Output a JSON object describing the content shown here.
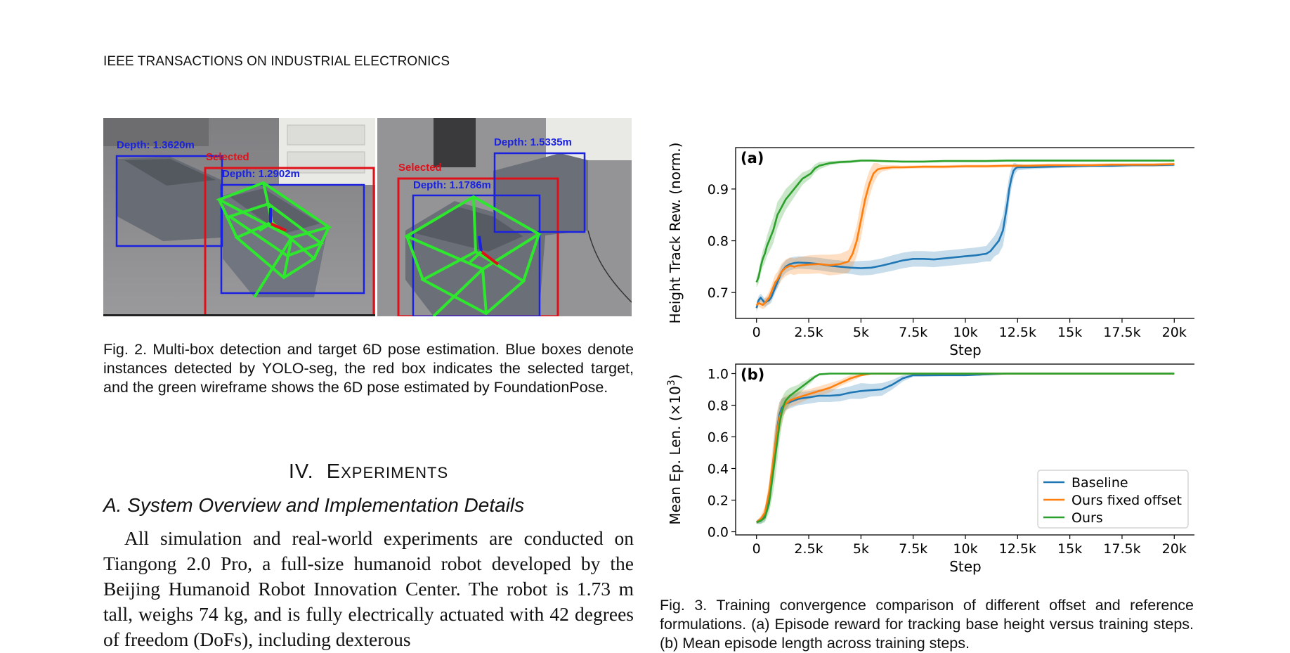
{
  "header": {
    "running_title": "IEEE TRANSACTIONS ON INDUSTRIAL ELECTRONICS"
  },
  "figure2": {
    "left_labels": {
      "depth_a": "Depth: 1.3620m",
      "selected": "Selected",
      "depth_b": "Depth: 1.2902m"
    },
    "right_labels": {
      "selected": "Selected",
      "depth_a": "Depth: 1.1786m",
      "depth_b": "Depth: 1.5335m"
    },
    "caption": "Fig. 2.  Multi-box detection and target 6D pose estimation. Blue boxes denote instances detected by YOLO-seg, the red box indicates the selected target, and the green wireframe shows the 6D pose estimated by FoundationPose.",
    "colors": {
      "detect_box": "#1a22e0",
      "selected_box": "#e0101a",
      "wireframe": "#2ee82e",
      "floor": "#8a8a8c",
      "bin": "#6b7078"
    }
  },
  "section": {
    "number": "IV.",
    "title_initial": "E",
    "title_rest": "XPERIMENTS"
  },
  "subsection": {
    "title": "A.  System Overview and Implementation Details"
  },
  "body": {
    "paragraph": "All simulation and real-world experiments are conducted on Tiangong 2.0 Pro, a full-size humanoid robot developed by the Beijing Humanoid Robot Innovation Center. The robot is 1.73 m tall, weighs 74 kg, and is fully electrically actuated with 42 degrees of freedom (DoFs), including dexterous"
  },
  "figure3": {
    "caption": "Fig. 3.  Training convergence comparison of different offset and reference formulations. (a) Episode reward for tracking base height versus training steps. (b) Mean episode length across training steps.",
    "chart_data": [
      {
        "type": "line",
        "panel_label": "(a)",
        "xlabel": "Step",
        "ylabel": "Height Track Rew. (norm.)",
        "xlim": [
          -1000,
          21000
        ],
        "ylim": [
          0.65,
          0.98
        ],
        "xticks": [
          0,
          2500,
          5000,
          7500,
          10000,
          12500,
          15000,
          17500,
          20000
        ],
        "xtick_labels": [
          "0",
          "2.5k",
          "5k",
          "7.5k",
          "10k",
          "12.5k",
          "15k",
          "17.5k",
          "20k"
        ],
        "yticks": [
          0.7,
          0.8,
          0.9
        ],
        "ytick_labels": [
          "0.7",
          "0.8",
          "0.9"
        ],
        "grid": false,
        "series": [
          {
            "name": "Baseline",
            "color": "#1f77b4",
            "x": [
              0,
              100,
              200,
              300,
              400,
              500,
              600,
              700,
              800,
              900,
              1000,
              1200,
              1400,
              1600,
              1800,
              2000,
              2500,
              3000,
              3500,
              4000,
              4500,
              5000,
              5500,
              6000,
              6500,
              7000,
              7500,
              8000,
              8500,
              9000,
              9500,
              10000,
              10500,
              11000,
              11200,
              11400,
              11600,
              11800,
              11900,
              12000,
              12100,
              12200,
              12300,
              12400,
              12500,
              13000,
              14000,
              15000,
              16000,
              17000,
              18000,
              19000,
              20000
            ],
            "y": [
              0.67,
              0.685,
              0.69,
              0.685,
              0.68,
              0.683,
              0.685,
              0.69,
              0.7,
              0.71,
              0.72,
              0.74,
              0.75,
              0.755,
              0.757,
              0.758,
              0.757,
              0.755,
              0.752,
              0.75,
              0.748,
              0.747,
              0.748,
              0.752,
              0.757,
              0.762,
              0.765,
              0.765,
              0.764,
              0.766,
              0.768,
              0.77,
              0.772,
              0.775,
              0.78,
              0.79,
              0.8,
              0.82,
              0.845,
              0.87,
              0.9,
              0.92,
              0.935,
              0.94,
              0.942,
              0.942,
              0.943,
              0.944,
              0.945,
              0.945,
              0.946,
              0.946,
              0.947
            ],
            "band": [
              0.008,
              0.008,
              0.008,
              0.008,
              0.008,
              0.008,
              0.008,
              0.01,
              0.01,
              0.01,
              0.012,
              0.012,
              0.012,
              0.012,
              0.012,
              0.012,
              0.012,
              0.012,
              0.012,
              0.012,
              0.012,
              0.014,
              0.014,
              0.014,
              0.015,
              0.015,
              0.015,
              0.015,
              0.015,
              0.015,
              0.015,
              0.015,
              0.015,
              0.015,
              0.02,
              0.02,
              0.025,
              0.03,
              0.03,
              0.03,
              0.025,
              0.02,
              0.015,
              0.01,
              0.006,
              0.004,
              0.003,
              0.003,
              0.003,
              0.003,
              0.003,
              0.003,
              0.003
            ]
          },
          {
            "name": "Ours fixed offset",
            "color": "#ff7f0e",
            "x": [
              0,
              100,
              200,
              300,
              400,
              500,
              600,
              700,
              800,
              900,
              1000,
              1200,
              1400,
              1600,
              1800,
              2000,
              2500,
              3000,
              3500,
              4000,
              4400,
              4600,
              4800,
              5000,
              5200,
              5400,
              5600,
              5800,
              6000,
              6500,
              7000,
              8000,
              9000,
              10000,
              11000,
              12000,
              13000,
              14000,
              15000,
              16000,
              17000,
              18000,
              19000,
              20000
            ],
            "y": [
              0.675,
              0.68,
              0.678,
              0.676,
              0.68,
              0.685,
              0.69,
              0.7,
              0.71,
              0.72,
              0.725,
              0.74,
              0.748,
              0.752,
              0.75,
              0.752,
              0.754,
              0.755,
              0.753,
              0.755,
              0.76,
              0.775,
              0.8,
              0.84,
              0.88,
              0.91,
              0.93,
              0.938,
              0.94,
              0.942,
              0.942,
              0.943,
              0.943,
              0.944,
              0.944,
              0.945,
              0.945,
              0.946,
              0.946,
              0.946,
              0.947,
              0.947,
              0.947,
              0.948
            ],
            "band": [
              0.008,
              0.008,
              0.008,
              0.008,
              0.01,
              0.01,
              0.012,
              0.012,
              0.014,
              0.015,
              0.015,
              0.016,
              0.016,
              0.016,
              0.016,
              0.016,
              0.018,
              0.018,
              0.02,
              0.02,
              0.022,
              0.025,
              0.03,
              0.035,
              0.03,
              0.025,
              0.02,
              0.012,
              0.006,
              0.004,
              0.003,
              0.003,
              0.003,
              0.003,
              0.003,
              0.003,
              0.003,
              0.003,
              0.003,
              0.003,
              0.003,
              0.003,
              0.003,
              0.003
            ]
          },
          {
            "name": "Ours",
            "color": "#2ca02c",
            "x": [
              0,
              100,
              200,
              300,
              400,
              500,
              600,
              700,
              800,
              900,
              1000,
              1200,
              1400,
              1600,
              1800,
              2000,
              2200,
              2400,
              2600,
              2800,
              3000,
              3500,
              4000,
              4500,
              5000,
              5500,
              6000,
              7000,
              8000,
              9000,
              10000,
              11000,
              12000,
              13000,
              14000,
              15000,
              16000,
              17000,
              18000,
              19000,
              20000
            ],
            "y": [
              0.72,
              0.73,
              0.75,
              0.765,
              0.775,
              0.79,
              0.8,
              0.81,
              0.82,
              0.835,
              0.85,
              0.865,
              0.88,
              0.89,
              0.9,
              0.91,
              0.92,
              0.925,
              0.93,
              0.94,
              0.945,
              0.95,
              0.952,
              0.953,
              0.955,
              0.955,
              0.954,
              0.953,
              0.953,
              0.954,
              0.954,
              0.954,
              0.955,
              0.955,
              0.955,
              0.955,
              0.955,
              0.955,
              0.955,
              0.955,
              0.955
            ],
            "band": [
              0.01,
              0.012,
              0.014,
              0.016,
              0.018,
              0.02,
              0.022,
              0.024,
              0.025,
              0.025,
              0.025,
              0.022,
              0.02,
              0.018,
              0.016,
              0.014,
              0.012,
              0.01,
              0.009,
              0.008,
              0.007,
              0.004,
              0.003,
              0.003,
              0.002,
              0.002,
              0.002,
              0.002,
              0.002,
              0.002,
              0.002,
              0.002,
              0.002,
              0.002,
              0.002,
              0.002,
              0.002,
              0.002,
              0.002,
              0.002,
              0.002
            ]
          }
        ]
      },
      {
        "type": "line",
        "panel_label": "(b)",
        "xlabel": "Step",
        "ylabel_main": "Mean Ep. Len. (×10",
        "ylabel_sup": "3",
        "ylabel_end": ")",
        "xlim": [
          -1000,
          21000
        ],
        "ylim": [
          -0.02,
          1.06
        ],
        "xticks": [
          0,
          2500,
          5000,
          7500,
          10000,
          12500,
          15000,
          17500,
          20000
        ],
        "xtick_labels": [
          "0",
          "2.5k",
          "5k",
          "7.5k",
          "10k",
          "12.5k",
          "15k",
          "17.5k",
          "20k"
        ],
        "yticks": [
          0.0,
          0.2,
          0.4,
          0.6,
          0.8,
          1.0
        ],
        "ytick_labels": [
          "0.0",
          "0.2",
          "0.4",
          "0.6",
          "0.8",
          "1.0"
        ],
        "grid": false,
        "legend_position": "lower-right",
        "series": [
          {
            "name": "Baseline",
            "color": "#1f77b4",
            "x": [
              0,
              200,
              400,
              600,
              700,
              800,
              900,
              1000,
              1100,
              1200,
              1300,
              1400,
              1600,
              1800,
              2000,
              2500,
              3000,
              3500,
              4000,
              4500,
              5000,
              5500,
              6000,
              6500,
              7000,
              7500,
              8000,
              9000,
              10000,
              11000,
              12000,
              13000,
              14000,
              15000,
              16000,
              17000,
              18000,
              19000,
              20000
            ],
            "y": [
              0.06,
              0.07,
              0.1,
              0.2,
              0.3,
              0.42,
              0.55,
              0.66,
              0.74,
              0.78,
              0.8,
              0.81,
              0.82,
              0.83,
              0.84,
              0.85,
              0.86,
              0.86,
              0.865,
              0.88,
              0.89,
              0.895,
              0.9,
              0.93,
              0.97,
              0.99,
              0.99,
              0.99,
              0.99,
              0.995,
              1.0,
              1.0,
              1.0,
              1.0,
              1.0,
              1.0,
              1.0,
              1.0,
              1.0
            ],
            "band": [
              0.01,
              0.02,
              0.03,
              0.05,
              0.08,
              0.1,
              0.12,
              0.1,
              0.08,
              0.06,
              0.05,
              0.04,
              0.04,
              0.04,
              0.04,
              0.04,
              0.04,
              0.04,
              0.04,
              0.04,
              0.05,
              0.04,
              0.04,
              0.03,
              0.02,
              0.01,
              0.01,
              0.005,
              0.005,
              0.005,
              0.0,
              0.0,
              0.0,
              0.0,
              0.0,
              0.0,
              0.0,
              0.0,
              0.0
            ]
          },
          {
            "name": "Ours fixed offset",
            "color": "#ff7f0e",
            "x": [
              0,
              200,
              400,
              600,
              700,
              800,
              900,
              1000,
              1100,
              1200,
              1300,
              1400,
              1600,
              1800,
              2000,
              2500,
              3000,
              3500,
              4000,
              4500,
              5000,
              5500,
              6000,
              7000,
              8000,
              9000,
              10000,
              11000,
              12000,
              13000,
              14000,
              15000,
              16000,
              17000,
              18000,
              19000,
              20000
            ],
            "y": [
              0.06,
              0.08,
              0.12,
              0.25,
              0.35,
              0.45,
              0.55,
              0.65,
              0.72,
              0.76,
              0.79,
              0.81,
              0.83,
              0.84,
              0.85,
              0.87,
              0.89,
              0.91,
              0.94,
              0.97,
              0.99,
              1.0,
              1.0,
              1.0,
              1.0,
              1.0,
              1.0,
              1.0,
              1.0,
              1.0,
              1.0,
              1.0,
              1.0,
              1.0,
              1.0,
              1.0,
              1.0
            ],
            "band": [
              0.01,
              0.02,
              0.04,
              0.06,
              0.09,
              0.12,
              0.13,
              0.12,
              0.1,
              0.08,
              0.06,
              0.05,
              0.04,
              0.04,
              0.04,
              0.03,
              0.03,
              0.03,
              0.02,
              0.02,
              0.01,
              0.0,
              0.0,
              0.0,
              0.0,
              0.0,
              0.0,
              0.0,
              0.0,
              0.0,
              0.0,
              0.0,
              0.0,
              0.0,
              0.0,
              0.0,
              0.0
            ]
          },
          {
            "name": "Ours",
            "color": "#2ca02c",
            "x": [
              0,
              200,
              400,
              600,
              700,
              800,
              900,
              1000,
              1100,
              1200,
              1300,
              1400,
              1600,
              1800,
              2000,
              2200,
              2400,
              2600,
              2800,
              3000,
              3500,
              4000,
              5000,
              6000,
              7000,
              8000,
              9000,
              10000,
              11000,
              12000,
              13000,
              14000,
              15000,
              16000,
              17000,
              18000,
              19000,
              20000
            ],
            "y": [
              0.06,
              0.07,
              0.09,
              0.18,
              0.28,
              0.38,
              0.48,
              0.58,
              0.68,
              0.75,
              0.8,
              0.83,
              0.86,
              0.88,
              0.9,
              0.92,
              0.94,
              0.96,
              0.98,
              0.995,
              1.0,
              1.0,
              1.0,
              1.0,
              1.0,
              1.0,
              1.0,
              1.0,
              1.0,
              1.0,
              1.0,
              1.0,
              1.0,
              1.0,
              1.0,
              1.0,
              1.0,
              1.0
            ],
            "band": [
              0.01,
              0.02,
              0.03,
              0.06,
              0.1,
              0.13,
              0.14,
              0.13,
              0.11,
              0.09,
              0.07,
              0.06,
              0.05,
              0.04,
              0.03,
              0.03,
              0.02,
              0.02,
              0.01,
              0.005,
              0.0,
              0.0,
              0.0,
              0.0,
              0.0,
              0.0,
              0.0,
              0.0,
              0.0,
              0.0,
              0.0,
              0.0,
              0.0,
              0.0,
              0.0,
              0.0,
              0.0,
              0.0
            ]
          }
        ]
      }
    ]
  }
}
